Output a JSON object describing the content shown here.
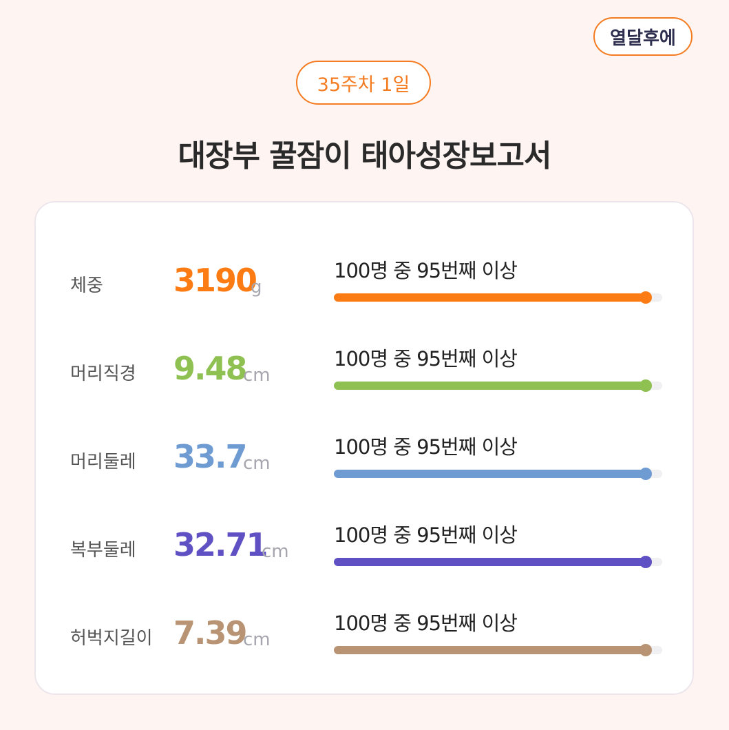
{
  "header": {
    "brand_button": "열달후에",
    "week_badge": "35주차 1일",
    "title": "대장부 꿀잠이 태아성장보고서"
  },
  "colors": {
    "accent": "#f47b20",
    "background": "#fef4f2"
  },
  "measurements": [
    {
      "label": "체중",
      "value": "3190",
      "unit": "g",
      "rank_text": "100명 중 95번째 이상",
      "percentile": 0.95,
      "color": "#fd7b13"
    },
    {
      "label": "머리직경",
      "value": "9.48",
      "unit": "cm",
      "rank_text": "100명 중 95번째 이상",
      "percentile": 0.95,
      "color": "#8fc052"
    },
    {
      "label": "머리둘레",
      "value": "33.7",
      "unit": "cm",
      "rank_text": "100명 중 95번째 이상",
      "percentile": 0.95,
      "color": "#6f9bd3"
    },
    {
      "label": "복부둘레",
      "value": "32.71",
      "unit": "cm",
      "rank_text": "100명 중 95번째 이상",
      "percentile": 0.95,
      "color": "#5f51c3"
    },
    {
      "label": "허벅지길이",
      "value": "7.39",
      "unit": "cm",
      "rank_text": "100명 중 95번째 이상",
      "percentile": 0.95,
      "color": "#b99474"
    }
  ]
}
